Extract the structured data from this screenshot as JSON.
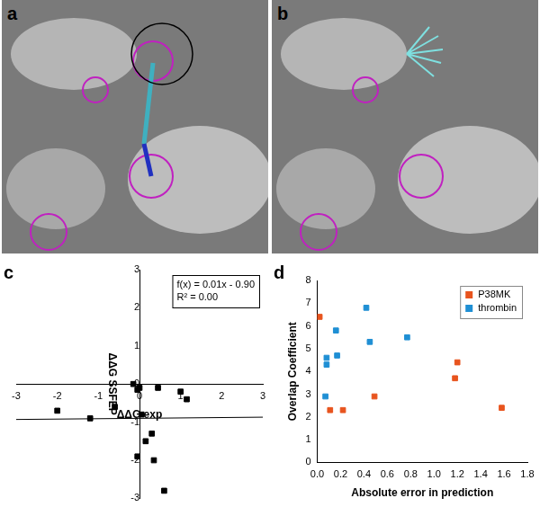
{
  "panels": [
    {
      "label": "a"
    },
    {
      "label": "b"
    }
  ],
  "chart_data": [
    {
      "panel_label": "c",
      "type": "scatter",
      "x_label": "ΔΔG exp",
      "y_label": "ΔΔG SSFEP",
      "annotations": [
        "f(x) = 0.01x - 0.90",
        "R² = 0.00"
      ],
      "trendline": {
        "slope": 0.01,
        "intercept": -0.9
      },
      "x": [
        -2.0,
        -1.2,
        -0.6,
        -0.15,
        -0.05,
        0.0,
        0.45,
        1.0,
        1.15,
        0.05,
        0.3,
        0.15,
        -0.05,
        0.35,
        0.6
      ],
      "values": [
        -0.7,
        -0.9,
        -0.6,
        0.0,
        -0.15,
        -0.1,
        -0.1,
        -0.2,
        -0.4,
        -0.8,
        -1.3,
        -1.5,
        -1.9,
        -2.0,
        -2.8
      ],
      "color": "#000000",
      "marker": "square",
      "xlim": [
        -3,
        3
      ],
      "xticks": [
        -3,
        -2,
        -1,
        0,
        1,
        2,
        3
      ],
      "ylim": [
        -3,
        3
      ],
      "yticks": [
        -3,
        -2,
        -1,
        0,
        1,
        2,
        3
      ],
      "grid": false
    },
    {
      "panel_label": "d",
      "type": "scatter",
      "x_label": "Absolute error in prediction",
      "y_label": "Overlap Coefficient",
      "legend": "top-right",
      "series": [
        {
          "name": "P38MK",
          "color": "#e8541e",
          "marker": "square",
          "x": [
            0.02,
            0.11,
            0.22,
            0.49,
            1.18,
            1.2,
            1.58
          ],
          "values": [
            6.4,
            2.3,
            2.3,
            2.9,
            3.7,
            4.4,
            2.4
          ]
        },
        {
          "name": "thrombin",
          "color": "#1f8fd4",
          "marker": "square",
          "x": [
            0.07,
            0.08,
            0.08,
            0.16,
            0.17,
            0.42,
            0.45,
            0.77
          ],
          "values": [
            2.9,
            4.3,
            4.6,
            5.8,
            4.7,
            6.8,
            5.3,
            5.5
          ]
        }
      ],
      "xlim": [
        0,
        1.8
      ],
      "xticks": [
        {
          "value": 0,
          "label": "0.0"
        },
        {
          "value": 0.2,
          "label": "0.2"
        },
        {
          "value": 0.4,
          "label": "0.4"
        },
        {
          "value": 0.6,
          "label": "0.6"
        },
        {
          "value": 0.8,
          "label": "0.8"
        },
        {
          "value": 1,
          "label": "1.0"
        },
        {
          "value": 1.2,
          "label": "1.2"
        },
        {
          "value": 1.4,
          "label": "1.4"
        },
        {
          "value": 1.6,
          "label": "1.6"
        },
        {
          "value": 1.8,
          "label": "1.8"
        }
      ],
      "ylim": [
        0,
        8
      ],
      "yticks": [
        0,
        1,
        2,
        3,
        4,
        5,
        6,
        7,
        8
      ],
      "grid": false
    }
  ]
}
